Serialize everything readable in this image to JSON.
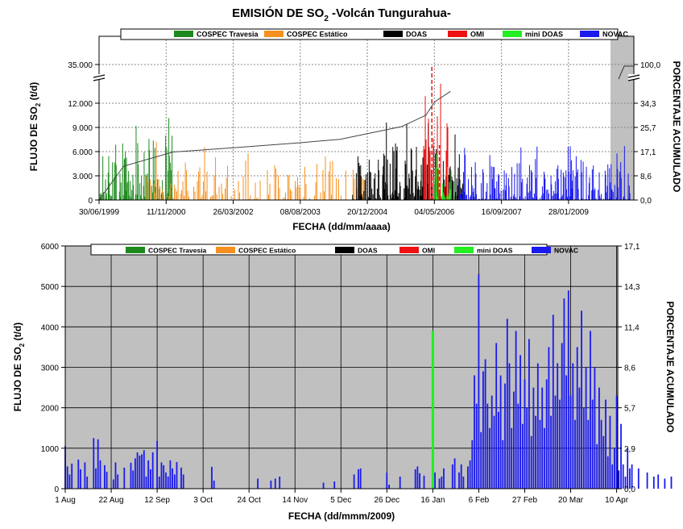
{
  "title": {
    "main": "EMISIÓN DE SO",
    "sub": "2",
    "rest": "  -Volcán Tungurahua-"
  },
  "legend": [
    {
      "label": "COSPEC Travesia",
      "color": "#1e8a1e"
    },
    {
      "label": "COSPEC Estático",
      "color": "#f5901e"
    },
    {
      "label": "DOAS",
      "color": "#000000"
    },
    {
      "label": "OMI",
      "color": "#ee1111"
    },
    {
      "label": "mini DOAS",
      "color": "#22ee22"
    },
    {
      "label": "NOVAC",
      "color": "#1a1aee"
    }
  ],
  "chart_data": [
    {
      "type": "bar",
      "xlabel": "FECHA (dd/mm/aaaa)",
      "ylabel_main": "FLUJO DE SO",
      "ylabel_sub": "2",
      "ylabel_end": " (t/d)",
      "y2label": "PORCENTAJE ACUMULADO",
      "x_ticks": [
        "30/06/1999",
        "11/11/2000",
        "26/03/2002",
        "08/08/2003",
        "20/12/2004",
        "04/05/2006",
        "16/09/2007",
        "28/01/2009"
      ],
      "y_ticks": [
        "0",
        "3.000",
        "6.000",
        "9.000",
        "12.000",
        "35.000"
      ],
      "y_tick_values": [
        0,
        3000,
        6000,
        9000,
        12000,
        35000
      ],
      "y_axis_break": [
        13500,
        33000
      ],
      "y2_ticks": [
        "0,0",
        "8,6",
        "17,1",
        "25,7",
        "34,3",
        "100,0"
      ],
      "grid": true,
      "legend_position": "top",
      "series": [
        {
          "name": "COSPEC Travesia",
          "x_range": [
            "30/06/1999",
            "01/01/2001"
          ],
          "peak": 10500
        },
        {
          "name": "COSPEC Estático",
          "x_range": [
            "01/06/2000",
            "30/11/2004"
          ],
          "peak": 7800
        },
        {
          "name": "DOAS",
          "x_range": [
            "01/09/2004",
            "31/12/2006"
          ],
          "peak": 9600
        },
        {
          "name": "OMI",
          "x_range": [
            "01/02/2006",
            "31/08/2006"
          ],
          "peak": 34500
        },
        {
          "name": "mini DOAS",
          "x_range": [
            "01/05/2006",
            "30/09/2006"
          ],
          "peak": 5800
        },
        {
          "name": "NOVAC",
          "x_range": [
            "01/11/2006",
            "30/04/2010"
          ],
          "peak": 6800
        }
      ],
      "cumulative_percent": {
        "dates": [
          "30/06/1999",
          "31/12/1999",
          "01/01/2001",
          "26/03/2002",
          "08/08/2003",
          "01/06/2004",
          "20/12/2004",
          "01/09/2005",
          "01/03/2006",
          "04/05/2006",
          "01/09/2006"
        ],
        "values": [
          0,
          12,
          17,
          18.5,
          20.3,
          21.5,
          23.5,
          26,
          30,
          35,
          41
        ]
      }
    },
    {
      "type": "bar",
      "xlabel": "FECHA (dd/mmm/2009)",
      "ylabel_main": "FLUJO DE SO",
      "ylabel_sub": "2",
      "ylabel_end": " (t/d)",
      "y2label": "PORCENTAJE ACUMULADO",
      "x_ticks": [
        "1 Aug",
        "22 Aug",
        "12 Sep",
        "3 Oct",
        "24 Oct",
        "14 Nov",
        "5 Dec",
        "26 Dec",
        "16 Jan",
        "6 Feb",
        "27 Feb",
        "20 Mar",
        "10 Apr"
      ],
      "y_ticks": [
        "0",
        "1000",
        "2000",
        "3000",
        "4000",
        "5000",
        "6000"
      ],
      "ylim": [
        0,
        6000
      ],
      "y2_ticks": [
        "0,0",
        "2,9",
        "5,7",
        "8,6",
        "11,4",
        "14,3",
        "17,1"
      ],
      "grid": true,
      "legend_position": "top",
      "highlight": {
        "series": "mini DOAS",
        "day": 168,
        "value": 3900
      },
      "series": [
        {
          "name": "NOVAC",
          "start": "1 Aug",
          "step_days": 1,
          "values": [
            1050,
            550,
            350,
            620,
            0,
            0,
            720,
            480,
            0,
            650,
            300,
            0,
            0,
            1250,
            500,
            1220,
            700,
            0,
            580,
            420,
            0,
            0,
            230,
            650,
            350,
            0,
            0,
            520,
            0,
            0,
            640,
            450,
            750,
            900,
            820,
            850,
            950,
            300,
            700,
            480,
            900,
            0,
            1180,
            300,
            650,
            580,
            400,
            300,
            700,
            500,
            350,
            660,
            0,
            520,
            350,
            0,
            0,
            0,
            0,
            0,
            0,
            0,
            0,
            0,
            0,
            0,
            0,
            540,
            200,
            0,
            0,
            0,
            0,
            0,
            0,
            0,
            0,
            0,
            0,
            0,
            0,
            0,
            0,
            0,
            0,
            0,
            0,
            0,
            250,
            0,
            0,
            0,
            0,
            0,
            200,
            0,
            250,
            0,
            300,
            0,
            0,
            0,
            0,
            0,
            0,
            0,
            0,
            0,
            0,
            0,
            0,
            0,
            0,
            0,
            0,
            0,
            0,
            0,
            150,
            0,
            0,
            0,
            0,
            180,
            0,
            0,
            0,
            0,
            0,
            0,
            0,
            0,
            350,
            0,
            480,
            500,
            0,
            0,
            0,
            0,
            0,
            0,
            0,
            0,
            0,
            0,
            0,
            400,
            100,
            0,
            0,
            0,
            0,
            300,
            0,
            0,
            0,
            0,
            0,
            0,
            480,
            550,
            380,
            0,
            320,
            0,
            0,
            0,
            520,
            400,
            0,
            250,
            300,
            500,
            0,
            0,
            0,
            600,
            750,
            0,
            400,
            600,
            300,
            0,
            550,
            700,
            1200,
            2800,
            2100,
            5300,
            1400,
            2900,
            3200,
            2100,
            1500,
            2300,
            1800,
            3600,
            1900,
            2800,
            1200,
            2600,
            4200,
            3100,
            1500,
            2400,
            3900,
            2100,
            3300,
            1600,
            2700,
            2000,
            3700,
            1300,
            2500,
            1800,
            3100,
            1700,
            2500,
            1500,
            2700,
            3500,
            1800,
            4300,
            2300,
            3100,
            2200,
            3600,
            4700,
            2800,
            4900,
            2300,
            3100,
            1700,
            3500,
            2500,
            4400,
            2000,
            3000,
            1700,
            3900,
            2200,
            3000,
            1100,
            2500,
            1700,
            1300,
            2200,
            800,
            1800,
            600,
            1000,
            2300,
            450,
            1600,
            600,
            300,
            1000,
            500,
            600,
            0,
            0,
            500,
            0,
            0,
            0,
            400,
            0,
            0,
            300,
            0,
            350,
            0,
            0,
            250,
            0,
            0,
            300,
            0,
            0,
            0,
            0,
            0,
            0,
            0,
            0,
            0,
            0,
            0,
            0,
            0,
            0,
            0,
            0,
            0,
            0,
            200,
            100,
            0,
            0,
            0,
            0,
            0,
            0,
            0,
            0,
            0,
            0,
            0,
            0,
            0,
            0,
            0,
            0,
            0,
            0,
            0,
            0,
            0,
            0,
            0,
            0,
            200,
            0,
            0,
            0,
            0,
            0,
            150,
            0,
            0,
            150,
            0,
            0,
            0,
            0,
            0,
            0,
            0,
            180,
            0,
            0,
            0,
            0
          ]
        }
      ]
    }
  ]
}
